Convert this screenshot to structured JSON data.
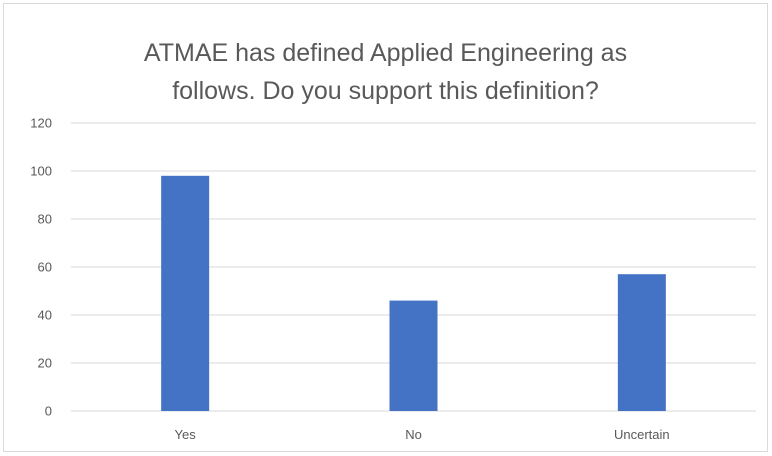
{
  "chart_data": {
    "type": "bar",
    "title_lines": [
      "ATMAE has defined Applied Engineering as",
      "follows. Do you support this definition?"
    ],
    "categories": [
      "Yes",
      "No",
      "Uncertain"
    ],
    "values": [
      98,
      46,
      57
    ],
    "ylim": [
      0,
      120
    ],
    "yticks": [
      0,
      20,
      40,
      60,
      80,
      100,
      120
    ],
    "grid": true,
    "bar_color": "#4472c4",
    "grid_color": "#d9d9d9",
    "text_color": "#595959"
  }
}
